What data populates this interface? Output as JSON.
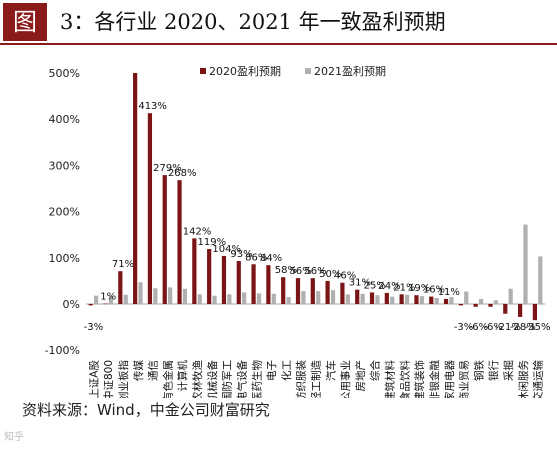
{
  "title": {
    "badge": "图",
    "text": "3：各行业 2020、2021 年一致盈利预期"
  },
  "source_note": "资料来源：Wind，中金公司财富研究",
  "watermark": "知乎",
  "colors": {
    "title_accent": "#8b1a1a",
    "series_2020": "#7b1515",
    "series_2021": "#b0b0b0",
    "text": "#111111"
  },
  "chart_data": {
    "type": "bar",
    "categories": [
      "上证A股",
      "中证800",
      "创业板指",
      "传媒",
      "通信",
      "有色金属",
      "计算机",
      "农林牧渔",
      "机械设备",
      "国防军工",
      "电气设备",
      "医药生物",
      "电子",
      "化工",
      "纺织服装",
      "轻工制造",
      "汽车",
      "公用事业",
      "房地产",
      "综合",
      "建筑材料",
      "食品饮料",
      "建筑装饰",
      "非银金融",
      "家用电器",
      "商业贸易",
      "钢铁",
      "银行",
      "采掘",
      "休闲服务",
      "交通运输"
    ],
    "series": [
      {
        "name": "2020盈利预期",
        "values": [
          -3,
          1,
          71,
          500,
          413,
          279,
          268,
          142,
          119,
          104,
          93,
          86,
          84,
          58,
          56,
          56,
          50,
          46,
          31,
          25,
          24,
          21,
          19,
          16,
          11,
          -3,
          -6,
          -6,
          -21,
          -28,
          -35
        ]
      },
      {
        "name": "2021盈利预期",
        "values": [
          18,
          17,
          20,
          47,
          34,
          36,
          33,
          21,
          18,
          21,
          25,
          23,
          22,
          15,
          28,
          28,
          30,
          21,
          22,
          19,
          16,
          20,
          17,
          13,
          15,
          27,
          11,
          8,
          33,
          172,
          103
        ]
      }
    ],
    "data_labels": [
      "-3%",
      "1%",
      "71%",
      "",
      "413%",
      "279%",
      "268%",
      "142%",
      "119%",
      "104%",
      "93%",
      "86%",
      "84%",
      "58%",
      "56%",
      "56%",
      "50%",
      "46%",
      "31%",
      "25%",
      "24%",
      "21%",
      "19%",
      "16%",
      "11%",
      "-3%",
      "-6%",
      "-6%",
      "-21%",
      "-28%",
      "-35%"
    ],
    "y_ticks": [
      "500%",
      "400%",
      "300%",
      "200%",
      "100%",
      "0%",
      "-100%"
    ],
    "ylim": [
      -100,
      500
    ],
    "grid": false,
    "legend_position": "top-right"
  }
}
